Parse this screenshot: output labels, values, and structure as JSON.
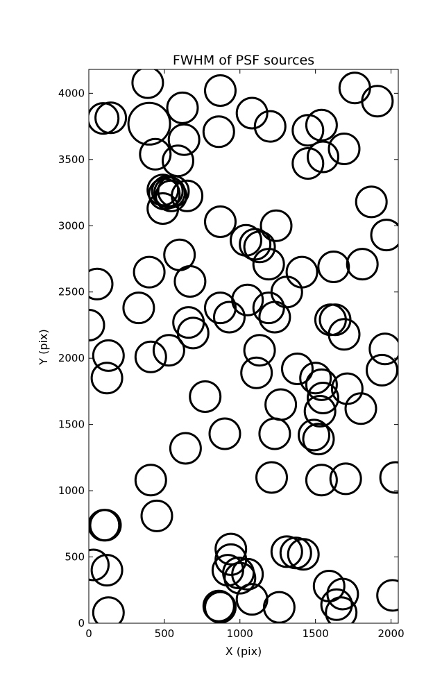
{
  "chart_data": {
    "type": "scatter",
    "title": "FWHM of PSF sources",
    "xlabel": "X (pix)",
    "ylabel": "Y (pix)",
    "xlim": [
      0,
      2048
    ],
    "ylim": [
      0,
      4180
    ],
    "xticks": [
      0,
      500,
      1000,
      1500,
      2000
    ],
    "yticks": [
      0,
      500,
      1000,
      1500,
      2000,
      2500,
      3000,
      3500,
      4000
    ],
    "grid": false,
    "marker": "open circle",
    "highlight_color": "#ff00ff",
    "series": [
      {
        "color": "#000000",
        "points": [
          [
            390,
            4080
          ],
          [
            870,
            4020
          ],
          [
            1760,
            4040
          ],
          [
            620,
            3890
          ],
          [
            1080,
            3850
          ],
          [
            1910,
            3940
          ],
          [
            95,
            3810
          ],
          [
            145,
            3815
          ],
          [
            1200,
            3750
          ],
          [
            1450,
            3720
          ],
          [
            1540,
            3760
          ],
          [
            860,
            3710
          ],
          [
            630,
            3650
          ],
          [
            1690,
            3580
          ],
          [
            440,
            3540
          ],
          [
            1550,
            3520
          ],
          [
            1450,
            3470
          ],
          [
            590,
            3490
          ],
          [
            490,
            3270
          ],
          [
            520,
            3260
          ],
          [
            535,
            3250
          ],
          [
            560,
            3260
          ],
          [
            500,
            3240
          ],
          [
            545,
            3225
          ],
          [
            650,
            3225
          ],
          [
            1870,
            3180
          ],
          [
            490,
            3130
          ],
          [
            870,
            3030
          ],
          [
            1240,
            3000
          ],
          [
            1040,
            2890
          ],
          [
            1100,
            2860
          ],
          [
            1130,
            2840
          ],
          [
            1970,
            2930
          ],
          [
            600,
            2780
          ],
          [
            1190,
            2710
          ],
          [
            1620,
            2690
          ],
          [
            1810,
            2710
          ],
          [
            1410,
            2650
          ],
          [
            400,
            2650
          ],
          [
            670,
            2580
          ],
          [
            1310,
            2500
          ],
          [
            55,
            2560
          ],
          [
            1050,
            2440
          ],
          [
            330,
            2380
          ],
          [
            870,
            2380
          ],
          [
            1190,
            2380
          ],
          [
            930,
            2310
          ],
          [
            1230,
            2310
          ],
          [
            660,
            2270
          ],
          [
            1600,
            2290
          ],
          [
            1630,
            2290
          ],
          [
            0,
            2250
          ],
          [
            690,
            2190
          ],
          [
            1690,
            2180
          ],
          [
            1130,
            2060
          ],
          [
            1960,
            2070
          ],
          [
            530,
            2060
          ],
          [
            130,
            2020
          ],
          [
            410,
            2010
          ],
          [
            1110,
            1890
          ],
          [
            1380,
            1920
          ],
          [
            1500,
            1850
          ],
          [
            1540,
            1800
          ],
          [
            1940,
            1910
          ],
          [
            120,
            1850
          ],
          [
            1550,
            1700
          ],
          [
            1710,
            1770
          ],
          [
            1270,
            1650
          ],
          [
            770,
            1710
          ],
          [
            1530,
            1600
          ],
          [
            1800,
            1620
          ],
          [
            1230,
            1430
          ],
          [
            900,
            1430
          ],
          [
            1490,
            1420
          ],
          [
            1520,
            1390
          ],
          [
            640,
            1320
          ],
          [
            1210,
            1100
          ],
          [
            1540,
            1080
          ],
          [
            1700,
            1090
          ],
          [
            2030,
            1100
          ],
          [
            410,
            1080
          ],
          [
            450,
            810
          ],
          [
            100,
            740
          ],
          [
            110,
            740
          ],
          [
            940,
            560
          ],
          [
            1310,
            540
          ],
          [
            1370,
            530
          ],
          [
            1420,
            520
          ],
          [
            940,
            480
          ],
          [
            920,
            400
          ],
          [
            120,
            400
          ],
          [
            990,
            380
          ],
          [
            1050,
            370
          ],
          [
            1000,
            340
          ],
          [
            1590,
            280
          ],
          [
            30,
            440
          ],
          [
            1680,
            220
          ],
          [
            1080,
            180
          ],
          [
            1260,
            120
          ],
          [
            1640,
            140
          ],
          [
            860,
            130
          ],
          [
            2010,
            210
          ],
          [
            130,
            80
          ],
          [
            1670,
            80
          ],
          [
            870,
            120
          ]
        ]
      },
      {
        "color": "#ff00ff",
        "points": [
          [
            400,
            3770
          ]
        ]
      }
    ]
  }
}
